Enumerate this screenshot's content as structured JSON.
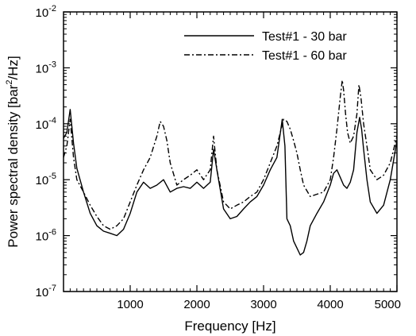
{
  "chart_data": {
    "type": "line",
    "xlabel": "Frequency [Hz]",
    "ylabel": {
      "main": "Power spectral density [bar",
      "sup": "2",
      "tail": "/Hz]"
    },
    "xlim": [
      0,
      5000
    ],
    "ylim_log10": [
      -7,
      -2
    ],
    "yscale": "log",
    "x_ticks": [
      {
        "value": 1000,
        "label": "1000"
      },
      {
        "value": 2000,
        "label": "2000"
      },
      {
        "value": 3000,
        "label": "3000"
      },
      {
        "value": 4000,
        "label": "4000"
      },
      {
        "value": 5000,
        "label": "5000"
      }
    ],
    "y_ticks": [
      {
        "exp": -7,
        "base": "10",
        "sup": "-7"
      },
      {
        "exp": -6,
        "base": "10",
        "sup": "-6"
      },
      {
        "exp": -5,
        "base": "10",
        "sup": "-5"
      },
      {
        "exp": -4,
        "base": "10",
        "sup": "-4"
      },
      {
        "exp": -3,
        "base": "10",
        "sup": "-3"
      },
      {
        "exp": -2,
        "base": "10",
        "sup": "-2"
      }
    ],
    "grid": false,
    "legend_position": "top-right",
    "series": [
      {
        "name": "Test#1 - 30 bar",
        "style": "solid",
        "color": "#000000",
        "x": [
          0,
          50,
          100,
          150,
          200,
          300,
          400,
          500,
          600,
          700,
          800,
          900,
          1000,
          1100,
          1200,
          1300,
          1400,
          1500,
          1600,
          1700,
          1800,
          1900,
          2000,
          2100,
          2200,
          2250,
          2300,
          2400,
          2500,
          2600,
          2700,
          2800,
          2900,
          3000,
          3100,
          3200,
          3280,
          3320,
          3350,
          3400,
          3450,
          3500,
          3550,
          3600,
          3650,
          3700,
          3800,
          3900,
          4000,
          4050,
          4100,
          4150,
          4200,
          4250,
          4300,
          4350,
          4400,
          4440,
          4470,
          4500,
          4550,
          4600,
          4700,
          4800,
          4900,
          5000
        ],
        "y": [
          5.5e-05,
          7e-05,
          0.00018,
          4.5e-05,
          1.6e-05,
          6e-06,
          2.5e-06,
          1.5e-06,
          1.2e-06,
          1.1e-06,
          1e-06,
          1.3e-06,
          2.5e-06,
          6e-06,
          9e-06,
          7e-06,
          8e-06,
          1e-05,
          6e-06,
          7e-06,
          7.5e-06,
          7e-06,
          9e-06,
          7e-06,
          9e-06,
          3.5e-05,
          1.5e-05,
          3e-06,
          2e-06,
          2.2e-06,
          3e-06,
          4e-06,
          5e-06,
          8e-06,
          1.5e-05,
          2.5e-05,
          0.00012,
          4e-05,
          2e-06,
          1.5e-06,
          8e-07,
          6e-07,
          4.5e-07,
          5e-07,
          8e-07,
          1.5e-06,
          2.5e-06,
          4e-06,
          8e-06,
          1.3e-05,
          1.5e-05,
          1.1e-05,
          8e-06,
          7e-06,
          9e-06,
          1.5e-05,
          7e-05,
          0.00013,
          8e-05,
          3.5e-05,
          1e-05,
          4e-06,
          2.5e-06,
          3.5e-06,
          1e-05,
          5e-05
        ]
      },
      {
        "name": "Test#1 - 60 bar",
        "style": "dashdot",
        "color": "#000000",
        "x": [
          0,
          50,
          100,
          150,
          200,
          300,
          400,
          500,
          600,
          700,
          800,
          900,
          1000,
          1100,
          1200,
          1300,
          1400,
          1450,
          1500,
          1550,
          1600,
          1700,
          1800,
          1900,
          2000,
          2100,
          2200,
          2250,
          2300,
          2400,
          2500,
          2600,
          2700,
          2800,
          2900,
          3000,
          3100,
          3200,
          3300,
          3350,
          3400,
          3450,
          3500,
          3550,
          3600,
          3700,
          3800,
          3900,
          4000,
          4050,
          4100,
          4150,
          4180,
          4200,
          4230,
          4260,
          4300,
          4350,
          4400,
          4430,
          4460,
          4500,
          4550,
          4600,
          4700,
          4800,
          4900,
          5000
        ],
        "y": [
          2.5e-05,
          4e-05,
          0.00012,
          2.5e-05,
          1e-05,
          6e-06,
          3.5e-06,
          2.2e-06,
          1.5e-06,
          1.3e-06,
          1.5e-06,
          2e-06,
          4e-06,
          8e-06,
          1.5e-05,
          2.5e-05,
          6e-05,
          0.00011,
          9e-05,
          5e-05,
          2e-05,
          8e-06,
          1e-05,
          1.2e-05,
          1.5e-05,
          1e-05,
          1.5e-05,
          6e-05,
          1.5e-05,
          4e-06,
          3e-06,
          3.5e-06,
          4e-06,
          5e-06,
          6e-06,
          1e-05,
          2e-05,
          4e-05,
          0.00012,
          0.00011,
          8e-05,
          5e-05,
          3e-05,
          1.5e-05,
          8e-06,
          5e-06,
          5.5e-06,
          6e-06,
          1e-05,
          2.5e-05,
          8e-05,
          0.0003,
          0.0006,
          0.0004,
          0.00015,
          7e-05,
          4.5e-05,
          6e-05,
          0.00015,
          0.0005,
          0.0003,
          0.0001,
          4e-05,
          1.5e-05,
          1e-05,
          1.2e-05,
          2e-05,
          6e-05
        ]
      }
    ]
  }
}
